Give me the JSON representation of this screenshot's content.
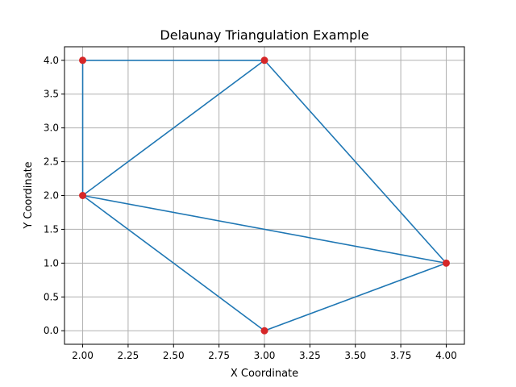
{
  "chart_data": {
    "type": "scatter",
    "title": "Delaunay Triangulation Example",
    "xlabel": "X Coordinate",
    "ylabel": "Y Coordinate",
    "xlim": [
      1.9,
      4.1
    ],
    "ylim": [
      -0.2,
      4.2
    ],
    "grid": true,
    "xticks": [
      2.0,
      2.25,
      2.5,
      2.75,
      3.0,
      3.25,
      3.5,
      3.75,
      4.0
    ],
    "xtick_labels": [
      "2.00",
      "2.25",
      "2.50",
      "2.75",
      "3.00",
      "3.25",
      "3.50",
      "3.75",
      "4.00"
    ],
    "yticks": [
      0.0,
      0.5,
      1.0,
      1.5,
      2.0,
      2.5,
      3.0,
      3.5,
      4.0
    ],
    "ytick_labels": [
      "0.0",
      "0.5",
      "1.0",
      "1.5",
      "2.0",
      "2.5",
      "3.0",
      "3.5",
      "4.0"
    ],
    "points": [
      {
        "x": 2,
        "y": 4
      },
      {
        "x": 3,
        "y": 4
      },
      {
        "x": 2,
        "y": 2
      },
      {
        "x": 4,
        "y": 1
      },
      {
        "x": 3,
        "y": 0
      }
    ],
    "edges": [
      [
        [
          2,
          4
        ],
        [
          3,
          4
        ]
      ],
      [
        [
          2,
          4
        ],
        [
          2,
          2
        ]
      ],
      [
        [
          2,
          2
        ],
        [
          3,
          4
        ]
      ],
      [
        [
          3,
          4
        ],
        [
          4,
          1
        ]
      ],
      [
        [
          2,
          2
        ],
        [
          4,
          1
        ]
      ],
      [
        [
          2,
          2
        ],
        [
          3,
          0
        ]
      ],
      [
        [
          3,
          0
        ],
        [
          4,
          1
        ]
      ]
    ],
    "colors": {
      "edge": "#1f77b4",
      "point": "#d62728"
    }
  }
}
